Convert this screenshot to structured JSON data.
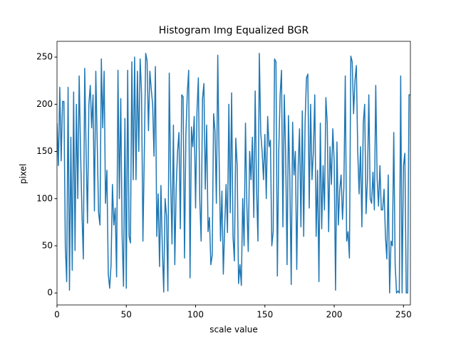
{
  "chart_data": {
    "type": "line",
    "title": "Histogram Img Equalized BGR",
    "xlabel": "scale value",
    "ylabel": "pixel",
    "x": [
      0,
      1,
      2,
      3,
      4,
      5,
      6,
      7,
      8,
      9,
      10,
      11,
      12,
      13,
      14,
      15,
      16,
      17,
      18,
      19,
      20,
      21,
      22,
      23,
      24,
      25,
      26,
      27,
      28,
      29,
      30,
      31,
      32,
      33,
      34,
      35,
      36,
      37,
      38,
      39,
      40,
      41,
      42,
      43,
      44,
      45,
      46,
      47,
      48,
      49,
      50,
      51,
      52,
      53,
      54,
      55,
      56,
      57,
      58,
      59,
      60,
      61,
      62,
      63,
      64,
      65,
      66,
      67,
      68,
      69,
      70,
      71,
      72,
      73,
      74,
      75,
      76,
      77,
      78,
      79,
      80,
      81,
      82,
      83,
      84,
      85,
      86,
      87,
      88,
      89,
      90,
      91,
      92,
      93,
      94,
      95,
      96,
      97,
      98,
      99,
      100,
      101,
      102,
      103,
      104,
      105,
      106,
      107,
      108,
      109,
      110,
      111,
      112,
      113,
      114,
      115,
      116,
      117,
      118,
      119,
      120,
      121,
      122,
      123,
      124,
      125,
      126,
      127,
      128,
      129,
      130,
      131,
      132,
      133,
      134,
      135,
      136,
      137,
      138,
      139,
      140,
      141,
      142,
      143,
      144,
      145,
      146,
      147,
      148,
      149,
      150,
      151,
      152,
      153,
      154,
      155,
      156,
      157,
      158,
      159,
      160,
      161,
      162,
      163,
      164,
      165,
      166,
      167,
      168,
      169,
      170,
      171,
      172,
      173,
      174,
      175,
      176,
      177,
      178,
      179,
      180,
      181,
      182,
      183,
      184,
      185,
      186,
      187,
      188,
      189,
      190,
      191,
      192,
      193,
      194,
      195,
      196,
      197,
      198,
      199,
      200,
      201,
      202,
      203,
      204,
      205,
      206,
      207,
      208,
      209,
      210,
      211,
      212,
      213,
      214,
      215,
      216,
      217,
      218,
      219,
      220,
      221,
      222,
      223,
      224,
      225,
      226,
      227,
      228,
      229,
      230,
      231,
      232,
      233,
      234,
      235,
      236,
      237,
      238,
      239,
      240,
      241,
      242,
      243,
      244,
      245,
      246,
      247,
      248,
      249,
      250,
      251,
      252,
      253,
      254,
      255
    ],
    "series": [
      {
        "color": "#1f77b4",
        "values": [
          180,
          135,
          218,
          140,
          203,
          203,
          50,
          12,
          218,
          3,
          165,
          24,
          213,
          45,
          200,
          100,
          230,
          150,
          85,
          36,
          238,
          150,
          74,
          200,
          220,
          175,
          210,
          87,
          235,
          160,
          85,
          72,
          248,
          175,
          235,
          95,
          130,
          20,
          5,
          30,
          115,
          72,
          90,
          17,
          236,
          100,
          206,
          60,
          7,
          185,
          5,
          236,
          60,
          53,
          245,
          120,
          250,
          120,
          235,
          150,
          248,
          212,
          55,
          148,
          254,
          246,
          172,
          235,
          216,
          200,
          145,
          240,
          60,
          105,
          28,
          114,
          48,
          1,
          100,
          82,
          2,
          233,
          120,
          52,
          178,
          30,
          112,
          150,
          170,
          68,
          210,
          208,
          37,
          168,
          211,
          236,
          16,
          176,
          155,
          187,
          90,
          192,
          228,
          100,
          55,
          206,
          222,
          110,
          178,
          65,
          80,
          30,
          40,
          190,
          172,
          95,
          252,
          140,
          55,
          108,
          20,
          70,
          115,
          64,
          200,
          85,
          212,
          60,
          34,
          164,
          135,
          10,
          30,
          8,
          100,
          50,
          180,
          92,
          44,
          150,
          120,
          165,
          80,
          214,
          110,
          55,
          254,
          170,
          150,
          120,
          168,
          100,
          187,
          155,
          162,
          50,
          65,
          248,
          245,
          18,
          150,
          210,
          236,
          70,
          210,
          146,
          30,
          188,
          122,
          9,
          181,
          125,
          150,
          25,
          133,
          174,
          70,
          193,
          60,
          180,
          228,
          232,
          90,
          200,
          120,
          150,
          210,
          60,
          130,
          12,
          180,
          68,
          135,
          88,
          207,
          180,
          65,
          155,
          115,
          174,
          140,
          3,
          160,
          72,
          110,
          125,
          78,
          112,
          230,
          55,
          65,
          37,
          251,
          245,
          190,
          225,
          241,
          150,
          105,
          155,
          70,
          180,
          200,
          84,
          120,
          210,
          100,
          95,
          128,
          88,
          220,
          121,
          92,
          135,
          88,
          88,
          110,
          60,
          36,
          125,
          0,
          55,
          50,
          170,
          30,
          0,
          2,
          0,
          230,
          0,
          135,
          148,
          0,
          0,
          210,
          210
        ]
      }
    ],
    "xlim": [
      0,
      255
    ],
    "xticks": [
      0,
      50,
      100,
      150,
      200,
      250
    ],
    "ylim": [
      -12.7,
      266.7
    ],
    "yticks": [
      0,
      50,
      100,
      150,
      200,
      250
    ]
  }
}
